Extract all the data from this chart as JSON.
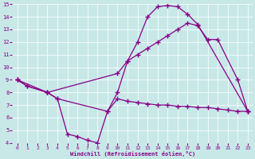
{
  "xlabel": "Windchill (Refroidissement éolien,°C)",
  "bg_color": "#c8e8e8",
  "line_color": "#880088",
  "xlim": [
    -0.5,
    23.5
  ],
  "ylim": [
    4,
    15
  ],
  "xticks": [
    0,
    1,
    2,
    3,
    4,
    5,
    6,
    7,
    8,
    9,
    10,
    11,
    12,
    13,
    14,
    15,
    16,
    17,
    18,
    19,
    20,
    21,
    22,
    23
  ],
  "yticks": [
    4,
    5,
    6,
    7,
    8,
    9,
    10,
    11,
    12,
    13,
    14,
    15
  ],
  "line1_x": [
    0,
    1,
    3,
    4,
    5,
    6,
    7,
    8,
    9,
    10,
    11,
    12,
    13,
    14,
    15,
    16,
    17,
    18,
    19,
    20,
    21,
    22,
    23
  ],
  "line1_y": [
    9.0,
    8.5,
    8.0,
    7.5,
    4.7,
    4.5,
    4.2,
    4.0,
    6.5,
    7.5,
    7.3,
    7.2,
    7.1,
    7.0,
    7.0,
    6.9,
    6.9,
    6.8,
    6.8,
    6.7,
    6.6,
    6.5,
    6.5
  ],
  "line2_x": [
    0,
    1,
    3,
    4,
    9,
    10,
    11,
    12,
    13,
    14,
    15,
    16,
    17,
    18,
    23
  ],
  "line2_y": [
    9.0,
    8.5,
    8.0,
    7.5,
    6.5,
    8.0,
    10.5,
    12.0,
    14.0,
    14.8,
    14.9,
    14.8,
    14.2,
    13.4,
    6.5
  ],
  "line3_x": [
    0,
    3,
    10,
    11,
    12,
    13,
    14,
    15,
    16,
    17,
    18,
    19,
    20,
    22,
    23
  ],
  "line3_y": [
    9.0,
    8.0,
    9.5,
    10.5,
    11.0,
    11.5,
    12.0,
    12.5,
    13.0,
    13.5,
    13.3,
    12.2,
    12.2,
    9.0,
    6.5
  ]
}
